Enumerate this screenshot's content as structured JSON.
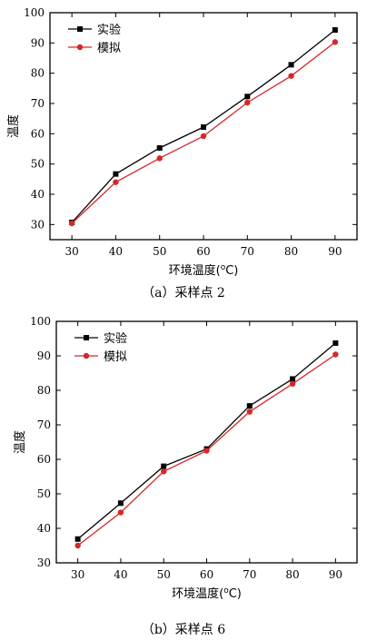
{
  "colors": {
    "experiment": "#000000",
    "simulation": "#d62728"
  },
  "chart_data": [
    {
      "type": "line",
      "title": "",
      "xlabel": "环境温度(°C)",
      "xlabel_parts": {
        "main": "环境温度(",
        "sup": "o",
        "end": "C)"
      },
      "ylabel": "温度",
      "x": [
        30,
        40,
        50,
        60,
        70,
        80,
        90
      ],
      "xlim": [
        25,
        95
      ],
      "ylim": [
        25,
        100
      ],
      "yticks": [
        30,
        40,
        50,
        60,
        70,
        80,
        90,
        100
      ],
      "series": [
        {
          "name": "实验",
          "marker": "square",
          "color": "#000000",
          "values": [
            30.7,
            46.7,
            55.3,
            62.2,
            72.3,
            82.8,
            94.3
          ]
        },
        {
          "name": "模拟",
          "marker": "circle",
          "color": "#d62728",
          "values": [
            30.4,
            44.0,
            51.9,
            59.2,
            70.3,
            79.1,
            90.3
          ]
        }
      ],
      "legend": "top-left",
      "grid": false,
      "caption": "（a）采样点 2"
    },
    {
      "type": "line",
      "title": "",
      "xlabel": "环境温度(°C)",
      "xlabel_parts": {
        "main": "环境温度(",
        "sup": "o",
        "end": "C)"
      },
      "ylabel": "温度",
      "x": [
        30,
        40,
        50,
        60,
        70,
        80,
        90
      ],
      "xlim": [
        25,
        95
      ],
      "ylim": [
        30,
        100
      ],
      "yticks": [
        30,
        40,
        50,
        60,
        70,
        80,
        90,
        100
      ],
      "series": [
        {
          "name": "实验",
          "marker": "square",
          "color": "#000000",
          "values": [
            36.9,
            47.3,
            58.0,
            63.0,
            75.5,
            83.3,
            93.7
          ]
        },
        {
          "name": "模拟",
          "marker": "circle",
          "color": "#d62728",
          "values": [
            35.0,
            44.6,
            56.5,
            62.5,
            73.8,
            81.9,
            90.4
          ]
        }
      ],
      "legend": "top-left",
      "grid": false,
      "caption": "（b）采样点 6"
    }
  ]
}
